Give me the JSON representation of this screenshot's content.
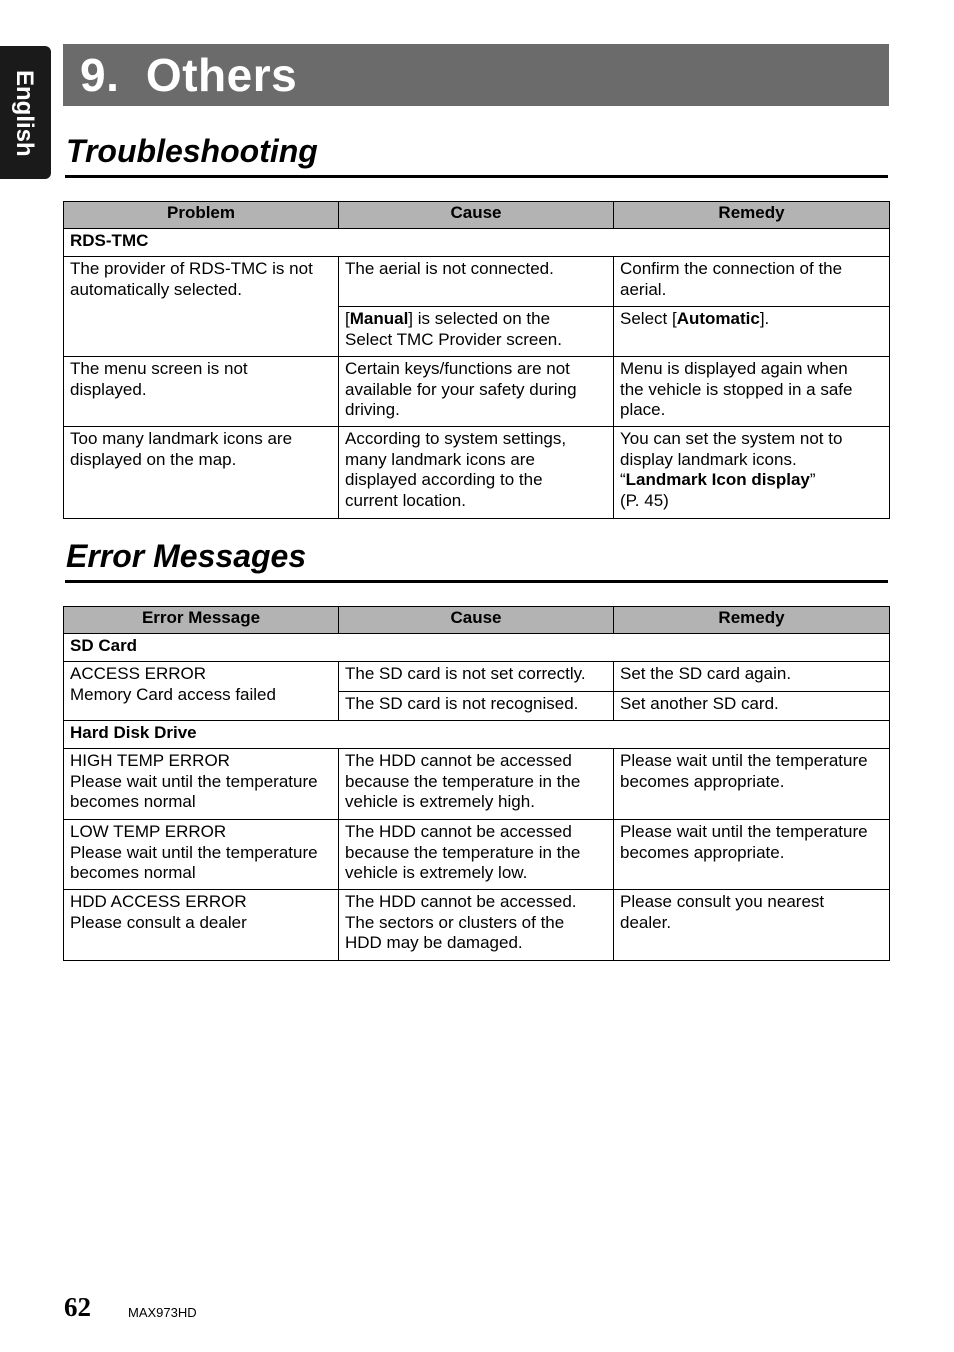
{
  "side_tab": "English",
  "chapter_title": "9.  Others",
  "troubleshooting": {
    "heading": "Troubleshooting",
    "headers": [
      "Problem",
      "Cause",
      "Remedy"
    ],
    "section": "RDS-TMC",
    "r1": {
      "problem": "The provider of RDS-TMC is not\nautomatically selected.",
      "cause1": "The aerial is not connected.",
      "remedy1": "Confirm the connection of the\naerial.",
      "cause2_a": "[",
      "cause2_b": "Manual",
      "cause2_c": "] is selected on the\nSelect TMC Provider screen.",
      "remedy2_a": "Select [",
      "remedy2_b": "Automatic",
      "remedy2_c": "]."
    },
    "r2": {
      "problem": "The menu screen is not\ndisplayed.",
      "cause": "Certain keys/functions are not\navailable for your safety during\ndriving.",
      "remedy": "Menu is displayed again when\nthe vehicle is stopped in a safe\nplace."
    },
    "r3": {
      "problem": "Too many landmark icons are\ndisplayed on the map.",
      "cause": "According to system settings,\nmany landmark icons are\ndisplayed according to the\ncurrent location.",
      "remedy_a": "You can set the system not to\ndisplay landmark icons.\n“",
      "remedy_b": "Landmark Icon display",
      "remedy_c": "”\n(P. 45)"
    }
  },
  "errors": {
    "heading": "Error Messages",
    "headers": [
      "Error Message",
      "Cause",
      "Remedy"
    ],
    "sd_section": "SD Card",
    "sd": {
      "message": "ACCESS ERROR\nMemory Card access failed",
      "cause1": "The SD card is not set correctly.",
      "remedy1": "Set the SD card again.",
      "cause2": "The SD card is not recognised.",
      "remedy2": "Set another SD card."
    },
    "hdd_section": "Hard Disk Drive",
    "hdd": [
      {
        "message": "HIGH TEMP ERROR\nPlease wait until the temperature\nbecomes normal",
        "cause": "The HDD cannot be accessed\nbecause the temperature in the\nvehicle is extremely high.",
        "remedy": "Please wait until the temperature\nbecomes appropriate."
      },
      {
        "message": "LOW TEMP ERROR\nPlease wait until the temperature\nbecomes normal",
        "cause": "The HDD cannot be accessed\nbecause the temperature in the\nvehicle is extremely low.",
        "remedy": "Please wait until the temperature\nbecomes appropriate."
      },
      {
        "message": "HDD ACCESS ERROR\nPlease consult a dealer",
        "cause": "The HDD cannot be accessed.\nThe sectors or clusters of the\nHDD may be damaged.",
        "remedy": "Please consult you nearest\ndealer."
      }
    ]
  },
  "footer": {
    "page_number": "62",
    "model": "MAX973HD"
  }
}
